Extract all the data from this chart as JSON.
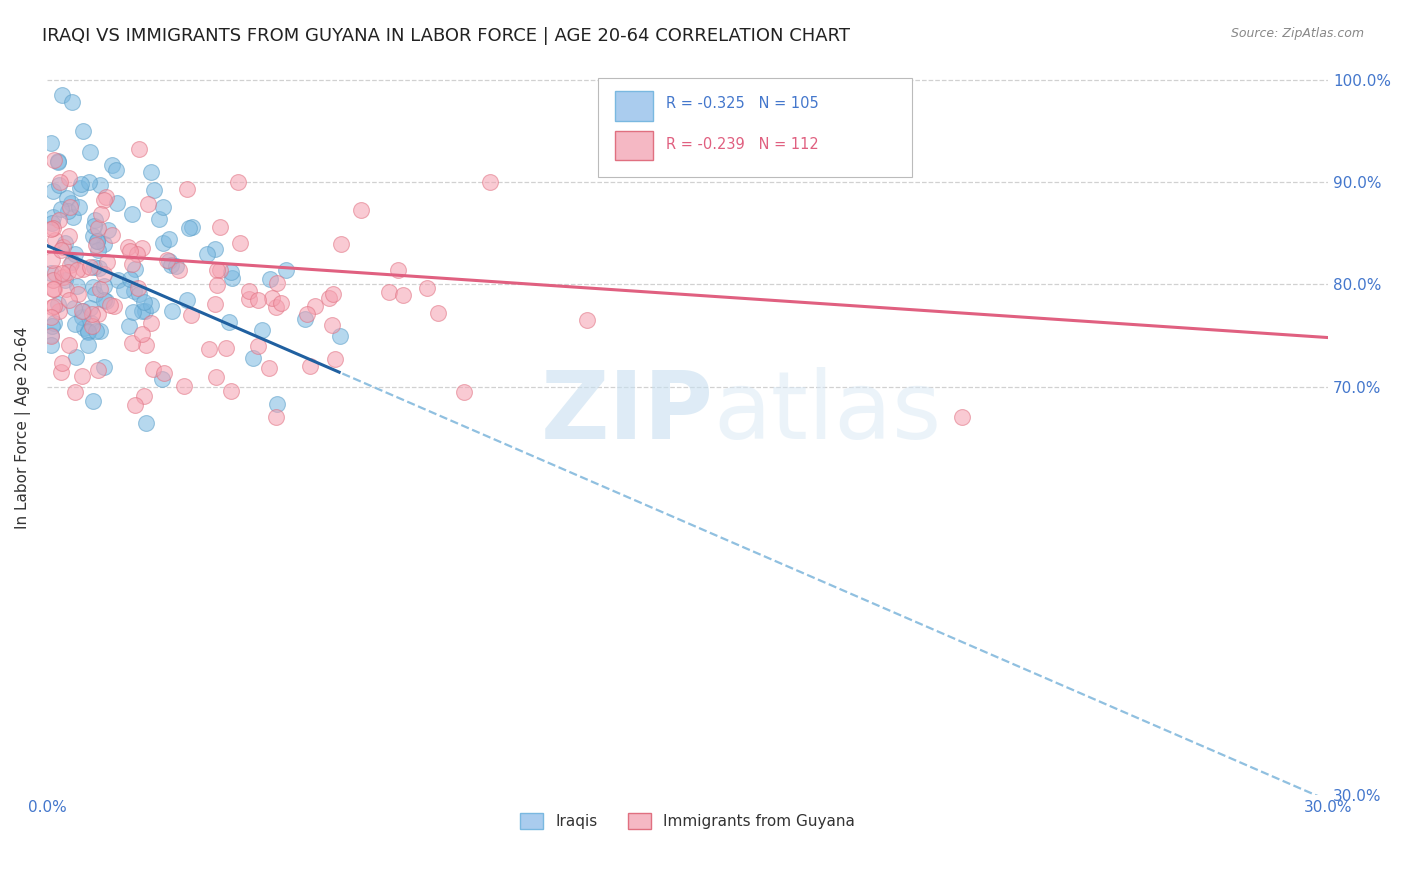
{
  "title": "IRAQI VS IMMIGRANTS FROM GUYANA IN LABOR FORCE | AGE 20-64 CORRELATION CHART",
  "source": "Source: ZipAtlas.com",
  "ylabel": "In Labor Force | Age 20-64",
  "xlim": [
    0.0,
    0.3
  ],
  "ylim": [
    0.3,
    1.02
  ],
  "series1_label": "Iraqis",
  "series1_color": "#7ab8e0",
  "series1_edge": "#5a9ec8",
  "series1_R": -0.325,
  "series1_N": 105,
  "series2_label": "Immigrants from Guyana",
  "series2_color": "#f5a0b0",
  "series2_edge": "#e07080",
  "series2_R": -0.239,
  "series2_N": 112,
  "blue_line_color": "#2060a0",
  "blue_dash_color": "#90c0e0",
  "pink_line_color": "#e06080",
  "watermark": "ZIPatlas",
  "background_color": "#ffffff",
  "grid_color": "#cccccc",
  "axis_color": "#4477cc",
  "title_fontsize": 13,
  "label_fontsize": 11,
  "blue_line_y0": 0.838,
  "blue_line_y_at_012": 0.735,
  "blue_line_y_at_030": 0.295,
  "pink_line_y0": 0.832,
  "pink_line_y_at_030": 0.748
}
